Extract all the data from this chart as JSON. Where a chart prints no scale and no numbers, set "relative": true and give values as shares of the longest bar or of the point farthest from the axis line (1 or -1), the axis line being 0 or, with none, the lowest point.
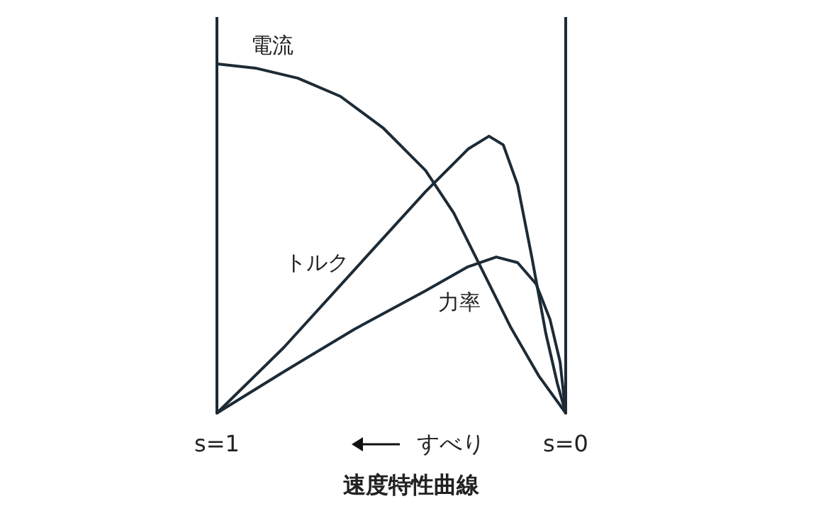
{
  "chart_data": {
    "type": "line",
    "relative": true,
    "title": "速度特性曲線",
    "xlabel": "すべり",
    "tick_labels": "x",
    "xlim": [
      1,
      0
    ],
    "xticks": [
      {
        "value": 1,
        "label": "s=1"
      },
      {
        "value": 0,
        "label": "s=0"
      }
    ],
    "series": [
      {
        "name": "電流",
        "color": "#1c2b36",
        "x": [
          1,
          0.89,
          0.768,
          0.646,
          0.524,
          0.402,
          0.321,
          0.24,
          0.159,
          0.077,
          0
        ],
        "values": [
          1,
          0.988,
          0.959,
          0.907,
          0.817,
          0.695,
          0.573,
          0.411,
          0.248,
          0.106,
          0
        ]
      },
      {
        "name": "トルク",
        "color": "#1c2b36",
        "x": [
          1,
          0.809,
          0.606,
          0.402,
          0.28,
          0.22,
          0.179,
          0.138,
          0.098,
          0.057,
          0.024,
          0
        ],
        "values": [
          0,
          0.187,
          0.41,
          0.634,
          0.756,
          0.793,
          0.768,
          0.654,
          0.451,
          0.228,
          0.085,
          0
        ]
      },
      {
        "name": "力率",
        "color": "#1c2b36",
        "x": [
          1,
          0.809,
          0.606,
          0.402,
          0.28,
          0.199,
          0.138,
          0.085,
          0.045,
          0.016,
          0
        ],
        "values": [
          0,
          0.118,
          0.24,
          0.35,
          0.419,
          0.447,
          0.431,
          0.37,
          0.268,
          0.146,
          0
        ]
      }
    ]
  }
}
